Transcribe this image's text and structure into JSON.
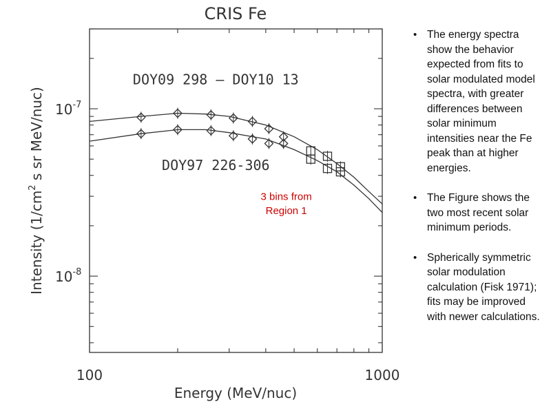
{
  "chart_data": {
    "type": "scatter",
    "title": "CRIS Fe",
    "xlabel": "Energy (MeV/nuc)",
    "ylabel_prefix": "Intensity (1/cm",
    "ylabel_sup": "2",
    "ylabel_suffix": " s sr MeV/nuc)",
    "xscale": "log",
    "yscale": "log",
    "xlim": [
      100,
      1000
    ],
    "ylim": [
      3.5e-09,
      3e-07
    ],
    "x_ticks": [
      {
        "value": 100,
        "label": "100"
      },
      {
        "value": 1000,
        "label": "1000"
      }
    ],
    "y_ticks": [
      {
        "value": 1e-07,
        "base": "10",
        "exp": "-7"
      },
      {
        "value": 1e-08,
        "base": "10",
        "exp": "-8"
      }
    ],
    "series": [
      {
        "name": "DOY09 298 - DOY10 13",
        "diamonds": {
          "x": [
            150,
            200,
            260,
            310,
            360,
            410,
            460
          ],
          "y": [
            8.9e-08,
            9.4e-08,
            9.2e-08,
            8.8e-08,
            8.4e-08,
            7.6e-08,
            6.8e-08
          ]
        },
        "squares": {
          "x": [
            570,
            650,
            720
          ],
          "y": [
            5.6e-08,
            5.2e-08,
            4.5e-08
          ]
        },
        "fit": {
          "x": [
            100,
            150,
            200,
            250,
            300,
            400,
            500,
            600,
            700,
            800,
            900,
            1000
          ],
          "y": [
            8.4e-08,
            9e-08,
            9.4e-08,
            9.3e-08,
            9e-08,
            8e-08,
            6.8e-08,
            5.7e-08,
            4.7e-08,
            3.9e-08,
            3.2e-08,
            2.7e-08
          ]
        }
      },
      {
        "name": "DOY97 226-306",
        "diamonds": {
          "x": [
            150,
            200,
            260,
            310,
            360,
            410,
            460
          ],
          "y": [
            7.1e-08,
            7.5e-08,
            7.4e-08,
            6.9e-08,
            6.6e-08,
            6.2e-08,
            6.2e-08
          ]
        },
        "squares": {
          "x": [
            570,
            650,
            720
          ],
          "y": [
            5e-08,
            4.4e-08,
            4.2e-08
          ]
        },
        "fit": {
          "x": [
            100,
            150,
            200,
            250,
            300,
            400,
            500,
            600,
            700,
            800,
            900,
            1000
          ],
          "y": [
            6.4e-08,
            7.1e-08,
            7.5e-08,
            7.5e-08,
            7.2e-08,
            6.6e-08,
            5.7e-08,
            4.9e-08,
            4.2e-08,
            3.5e-08,
            2.9e-08,
            2.4e-08
          ]
        }
      }
    ],
    "annotations": [
      {
        "text": "DOY09 298 – DOY10 13",
        "x": 270,
        "y": 1.4e-07,
        "color": "#333333"
      },
      {
        "text": "DOY97 226-306",
        "x": 270,
        "y": 4.3e-08,
        "color": "#333333"
      },
      {
        "text": "3 bins from",
        "x": 470,
        "y": 2.85e-08,
        "color": "#cc0000"
      },
      {
        "text": "Region 1",
        "x": 470,
        "y": 2.35e-08,
        "color": "#cc0000"
      }
    ],
    "grid": false
  },
  "bullets": [
    "The energy spectra show the behavior expected from fits to solar modulated model spectra, with greater differences between solar minimum intensities near the Fe peak than at higher energies.",
    "The Figure shows the two most recent solar minimum periods.",
    "Spherically symmetric solar modulation calculation (Fisk 1971); fits may be improved with newer calculations."
  ],
  "bullet_symbol": "•"
}
